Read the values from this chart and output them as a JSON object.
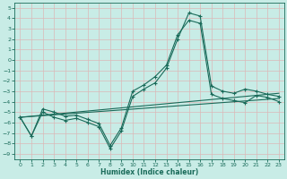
{
  "bg_color": "#c8ece6",
  "grid_color": "#dbb8b8",
  "line_color": "#1a6b5a",
  "xlim": [
    -0.5,
    23.5
  ],
  "ylim": [
    -9.5,
    5.5
  ],
  "yticks": [
    5,
    4,
    3,
    2,
    1,
    0,
    -1,
    -2,
    -3,
    -4,
    -5,
    -6,
    -7,
    -8,
    -9
  ],
  "xticks": [
    0,
    1,
    2,
    3,
    4,
    5,
    6,
    7,
    8,
    9,
    10,
    11,
    12,
    13,
    14,
    15,
    16,
    17,
    18,
    19,
    20,
    21,
    22,
    23
  ],
  "xlabel": "Humidex (Indice chaleur)",
  "curve1_x": [
    0,
    1,
    2,
    3,
    4,
    5,
    6,
    7,
    8,
    9,
    10,
    11,
    12,
    13,
    14,
    15,
    16,
    17,
    18,
    19,
    20,
    21,
    22,
    23
  ],
  "curve1_y": [
    -5.5,
    -7.3,
    -5.0,
    -5.5,
    -5.8,
    -5.6,
    -6.0,
    -6.4,
    -8.5,
    -6.8,
    -3.5,
    -2.8,
    -2.2,
    -0.8,
    2.0,
    4.5,
    4.2,
    -2.5,
    -3.0,
    -3.2,
    -2.8,
    -3.0,
    -3.3,
    -3.5
  ],
  "curve2_x": [
    0,
    1,
    2,
    3,
    4,
    5,
    6,
    7,
    8,
    9,
    10,
    11,
    12,
    13,
    14,
    15,
    16,
    17,
    18,
    19,
    20,
    21,
    22,
    23
  ],
  "curve2_y": [
    -5.5,
    -7.3,
    -4.7,
    -5.0,
    -5.4,
    -5.3,
    -5.7,
    -6.1,
    -8.2,
    -6.5,
    -3.0,
    -2.4,
    -1.6,
    -0.5,
    2.4,
    3.8,
    3.5,
    -3.3,
    -3.7,
    -3.9,
    -4.1,
    -3.4,
    -3.6,
    -4.0
  ],
  "trend1_x": [
    0,
    23
  ],
  "trend1_y": [
    -5.5,
    -3.2
  ],
  "trend2_x": [
    0,
    23
  ],
  "trend2_y": [
    -5.5,
    -3.7
  ]
}
